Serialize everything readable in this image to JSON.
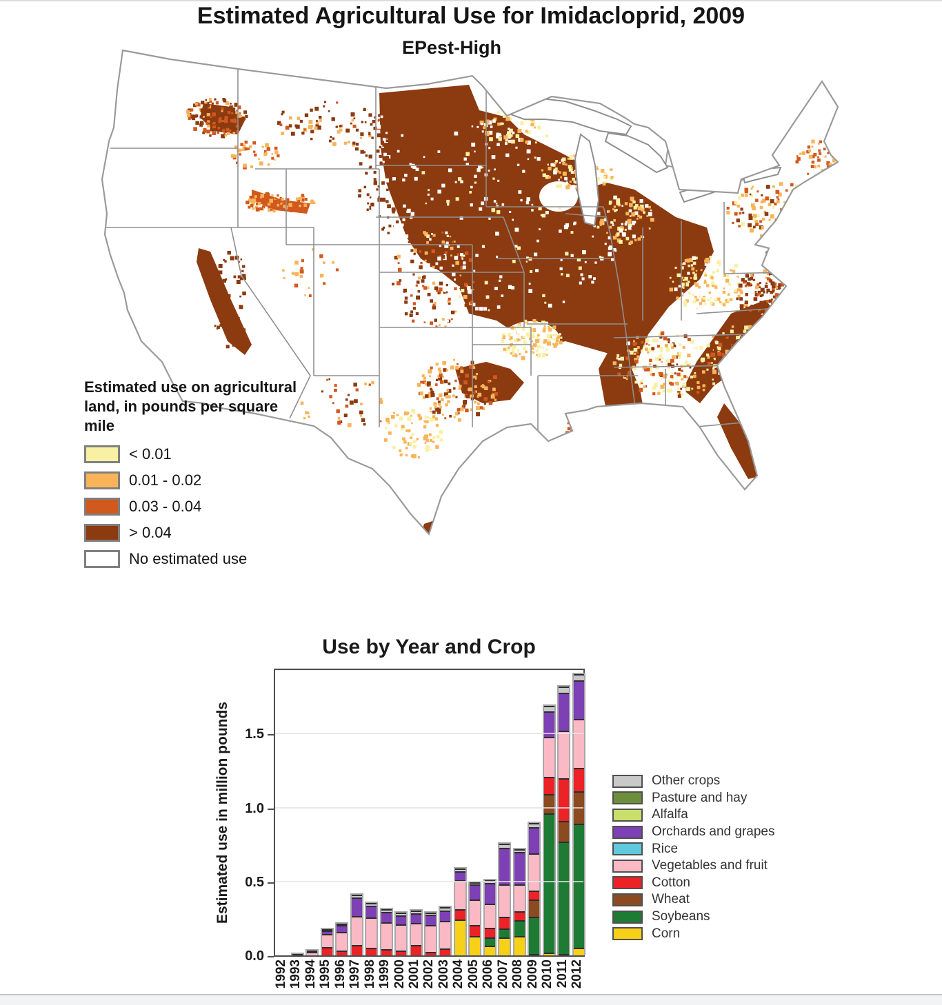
{
  "figure": {
    "title": "Estimated Agricultural Use for Imidacloprid, 2009",
    "subtitle": "EPest-High"
  },
  "map_legend": {
    "title": "Estimated use on agricultural land, in pounds per square mile",
    "items": [
      {
        "label": "< 0.01",
        "color": "#F8F1A4"
      },
      {
        "label": "0.01 - 0.02",
        "color": "#F9B45A"
      },
      {
        "label": "0.03 - 0.04",
        "color": "#D2591E"
      },
      {
        "label": "> 0.04",
        "color": "#8C3A10"
      },
      {
        "label": "No estimated use",
        "color": "#FFFFFF"
      }
    ]
  },
  "chart_data": {
    "type": "bar",
    "stacked": true,
    "title": "Use by Year and Crop",
    "xlabel": "",
    "ylabel": "Estimated use in million pounds",
    "ylim": [
      0,
      1.95
    ],
    "yticks": [
      "0.0",
      "0.5",
      "1.0",
      "1.5"
    ],
    "grid": true,
    "legend_position": "right",
    "categories": [
      "1992",
      "1993",
      "1994",
      "1995",
      "1996",
      "1997",
      "1998",
      "1999",
      "2000",
      "2001",
      "2002",
      "2003",
      "2004",
      "2005",
      "2006",
      "2007",
      "2008",
      "2009",
      "2010",
      "2011",
      "2012"
    ],
    "series": [
      {
        "name": "Corn",
        "color": "#F7D117",
        "values": [
          0,
          0,
          0,
          0,
          0,
          0,
          0,
          0,
          0,
          0,
          0,
          0,
          0.245,
          0.13,
          0.065,
          0.12,
          0.13,
          0.01,
          0.02,
          0.01,
          0.05
        ]
      },
      {
        "name": "Soybeans",
        "color": "#1E7B34",
        "values": [
          0,
          0,
          0,
          0,
          0,
          0,
          0,
          0,
          0,
          0,
          0,
          0,
          0,
          0,
          0.055,
          0.06,
          0.11,
          0.25,
          0.94,
          0.76,
          0.84
        ]
      },
      {
        "name": "Wheat",
        "color": "#8C4A21",
        "values": [
          0,
          0,
          0,
          0,
          0,
          0,
          0,
          0,
          0,
          0,
          0,
          0,
          0,
          0,
          0,
          0,
          0,
          0.12,
          0.13,
          0.14,
          0.22
        ]
      },
      {
        "name": "Cotton",
        "color": "#EC2227",
        "values": [
          0,
          0,
          0,
          0.055,
          0.035,
          0.07,
          0.05,
          0.04,
          0.035,
          0.07,
          0.025,
          0.045,
          0.07,
          0.075,
          0.065,
          0.08,
          0.06,
          0.06,
          0.12,
          0.29,
          0.16
        ]
      },
      {
        "name": "Vegetables and fruit",
        "color": "#FBB9C5",
        "values": [
          0,
          0.005,
          0.025,
          0.09,
          0.125,
          0.195,
          0.205,
          0.185,
          0.175,
          0.15,
          0.18,
          0.19,
          0.195,
          0.175,
          0.165,
          0.22,
          0.18,
          0.25,
          0.27,
          0.32,
          0.33
        ]
      },
      {
        "name": "Rice",
        "color": "#5FC9DE",
        "values": [
          0,
          0,
          0,
          0,
          0,
          0,
          0,
          0,
          0,
          0,
          0,
          0,
          0,
          0,
          0,
          0,
          0,
          0,
          0,
          0,
          0
        ]
      },
      {
        "name": "Orchards and grapes",
        "color": "#7E40B5",
        "values": [
          0,
          0,
          0,
          0.025,
          0.045,
          0.125,
          0.08,
          0.07,
          0.06,
          0.065,
          0.07,
          0.07,
          0.06,
          0.1,
          0.14,
          0.25,
          0.22,
          0.18,
          0.17,
          0.26,
          0.26
        ]
      },
      {
        "name": "Alfalfa",
        "color": "#C8E06B",
        "values": [
          0,
          0,
          0,
          0,
          0,
          0,
          0,
          0,
          0,
          0,
          0,
          0,
          0,
          0,
          0,
          0,
          0,
          0,
          0,
          0,
          0
        ]
      },
      {
        "name": "Pasture and hay",
        "color": "#6C8F3C",
        "values": [
          0,
          0,
          0,
          0,
          0,
          0,
          0,
          0,
          0,
          0,
          0,
          0,
          0,
          0,
          0,
          0,
          0,
          0,
          0,
          0,
          0
        ]
      },
      {
        "name": "Other crops",
        "color": "#C9C9C9",
        "values": [
          0,
          0,
          0.004,
          0.006,
          0.01,
          0.02,
          0.02,
          0.018,
          0.018,
          0.018,
          0.015,
          0.02,
          0.018,
          0.015,
          0.02,
          0.025,
          0.02,
          0.025,
          0.04,
          0.04,
          0.045
        ]
      }
    ],
    "legend_order_top_to_bottom": [
      "Other crops",
      "Pasture and hay",
      "Alfalfa",
      "Orchards and grapes",
      "Rice",
      "Vegetables and fruit",
      "Cotton",
      "Wheat",
      "Soybeans",
      "Corn"
    ]
  }
}
